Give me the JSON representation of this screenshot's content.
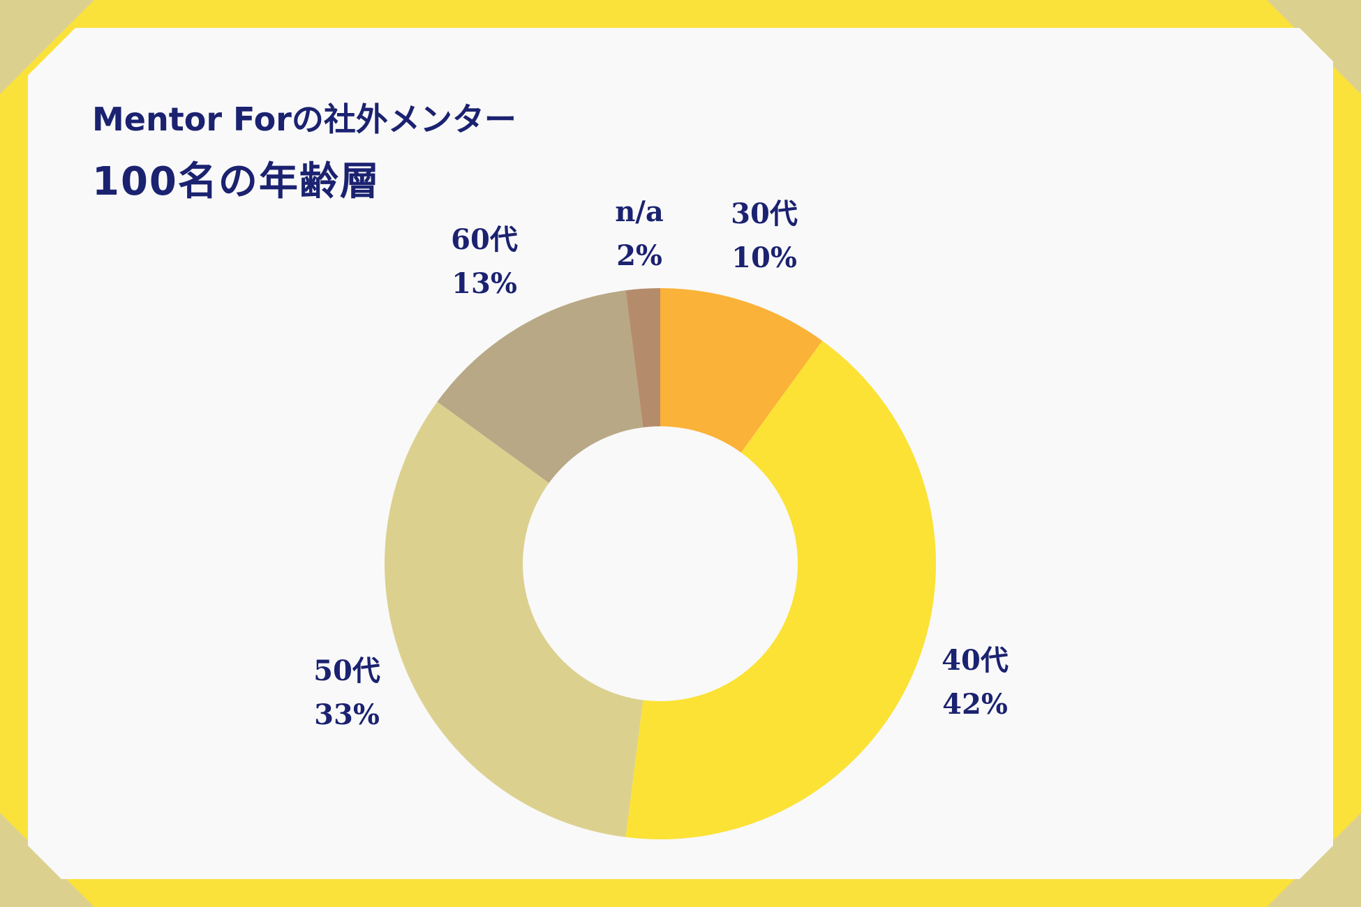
{
  "title": {
    "line1": "Mentor Forの社外メンター",
    "line2": "100名の年齢層"
  },
  "colors": {
    "frame": "#fbe23a",
    "corners": "#dcd08f",
    "card": "#f9f9f9",
    "text": "#1b2270"
  },
  "chart_data": {
    "type": "pie",
    "style": "donut",
    "title": "",
    "labels": [
      "30代",
      "40代",
      "50代",
      "60代",
      "n/a"
    ],
    "values": [
      10,
      42,
      33,
      13,
      2
    ],
    "value_labels": [
      "10%",
      "42%",
      "33%",
      "13%",
      "2%"
    ],
    "colors": [
      "#fbb238",
      "#fbe235",
      "#dcd08f",
      "#b8a885",
      "#b58c6b"
    ],
    "start": "12 o'clock",
    "direction": "clockwise",
    "legend": "none"
  }
}
